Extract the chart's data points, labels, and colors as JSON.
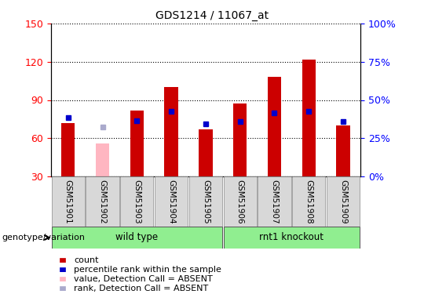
{
  "title": "GDS1214 / 11067_at",
  "samples": [
    "GSM51901",
    "GSM51902",
    "GSM51903",
    "GSM51904",
    "GSM51905",
    "GSM51906",
    "GSM51907",
    "GSM51908",
    "GSM51909"
  ],
  "count_values": [
    72,
    null,
    82,
    100,
    67,
    87,
    108,
    122,
    70
  ],
  "count_absent": [
    null,
    56,
    null,
    null,
    null,
    null,
    null,
    null,
    null
  ],
  "rank_values": [
    76,
    null,
    74,
    81,
    71,
    73,
    80,
    81,
    73
  ],
  "rank_absent": [
    null,
    69,
    null,
    null,
    null,
    null,
    null,
    null,
    null
  ],
  "ylim_left": [
    30,
    150
  ],
  "ylim_right": [
    0,
    100
  ],
  "yticks_left": [
    30,
    60,
    90,
    120,
    150
  ],
  "yticks_right": [
    0,
    25,
    50,
    75,
    100
  ],
  "ytick_labels_right": [
    "0%",
    "25%",
    "50%",
    "75%",
    "100%"
  ],
  "bar_width": 0.4,
  "count_color": "#CC0000",
  "rank_color": "#0000CC",
  "count_absent_color": "#FFB6C1",
  "rank_absent_color": "#AAAACC",
  "legend_items": [
    {
      "label": "count",
      "color": "#CC0000"
    },
    {
      "label": "percentile rank within the sample",
      "color": "#0000CC"
    },
    {
      "label": "value, Detection Call = ABSENT",
      "color": "#FFB6C1"
    },
    {
      "label": "rank, Detection Call = ABSENT",
      "color": "#AAAACC"
    }
  ],
  "group_label_prefix": "genotype/variation",
  "wild_type_indices": [
    0,
    1,
    2,
    3,
    4
  ],
  "rnt1_indices": [
    5,
    6,
    7,
    8
  ],
  "figsize": [
    5.4,
    3.75
  ],
  "dpi": 100
}
